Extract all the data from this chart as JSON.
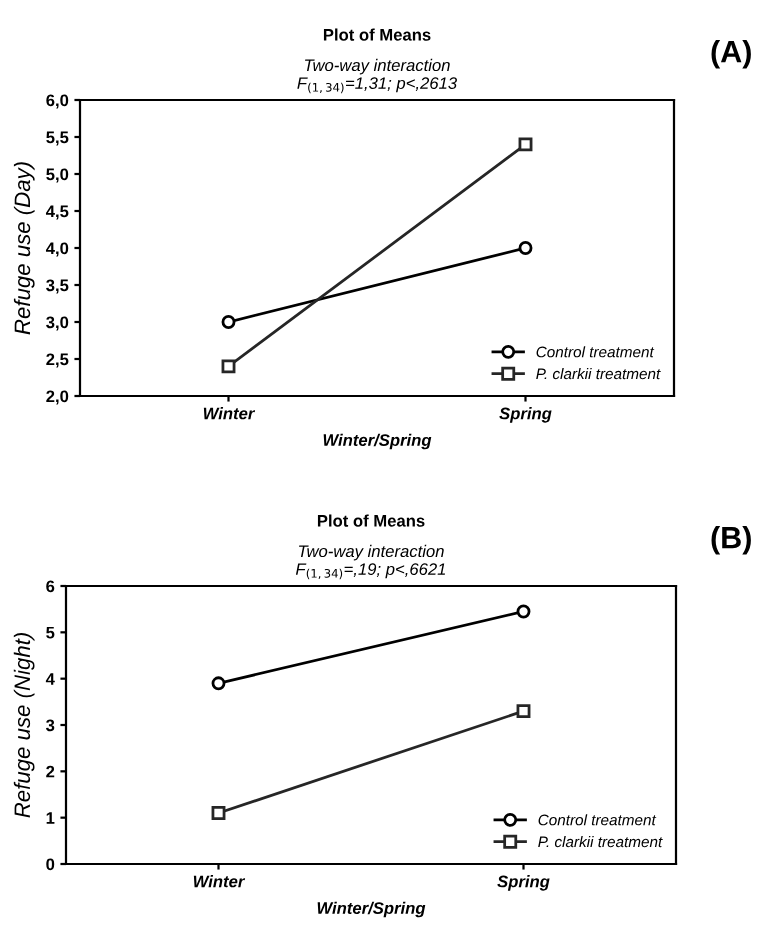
{
  "chart_data": [
    {
      "type": "line",
      "title": "Plot of Means",
      "subtitle": "Two-way interaction\nF$_{(1,34)}$=1,31; p<,2613",
      "xlabel": "Winter/Spring",
      "ylabel": "Refuge use (Day)",
      "categories": [
        "Winter",
        "Spring"
      ],
      "series": [
        {
          "name": "Control treatment",
          "color": "#000000",
          "marker": "circle",
          "values": [
            3.0,
            4.0
          ]
        },
        {
          "name": "P. clarkii treatment",
          "color": "#262626",
          "marker": "square",
          "values": [
            2.4,
            5.4
          ]
        }
      ],
      "ylim": [
        2,
        6
      ],
      "yticks": [
        {
          "value": 2,
          "label": "2,0"
        },
        {
          "value": 2.5,
          "label": "2,5"
        },
        {
          "value": 3,
          "label": "3,0"
        },
        {
          "value": 3.5,
          "label": "3,5"
        },
        {
          "value": 4,
          "label": "4,0"
        },
        {
          "value": 4.5,
          "label": "4,5"
        },
        {
          "value": 5,
          "label": "5,0"
        },
        {
          "value": 5.5,
          "label": "5,5"
        },
        {
          "value": 6,
          "label": "6,0"
        }
      ],
      "grid": false,
      "legend": "bottom right",
      "annotations": [
        "(A)"
      ]
    },
    {
      "type": "line",
      "title": "Plot of Means",
      "subtitle": "Two-way interaction\nF$_{(1,34)}$=,19; p<,6621",
      "xlabel": "Winter/Spring",
      "ylabel": "Refuge use (Night)",
      "categories": [
        "Winter",
        "Spring"
      ],
      "series": [
        {
          "name": "Control treatment",
          "color": "#000000",
          "marker": "circle",
          "values": [
            3.9,
            5.45
          ]
        },
        {
          "name": "P. clarkii treatment",
          "color": "#262626",
          "marker": "square",
          "values": [
            1.1,
            3.3
          ]
        }
      ],
      "ylim": [
        0,
        6
      ],
      "yticks": [
        0,
        1,
        2,
        3,
        4,
        5,
        6
      ],
      "grid": false,
      "legend": "bottom right",
      "annotations": [
        "(B)"
      ]
    }
  ]
}
